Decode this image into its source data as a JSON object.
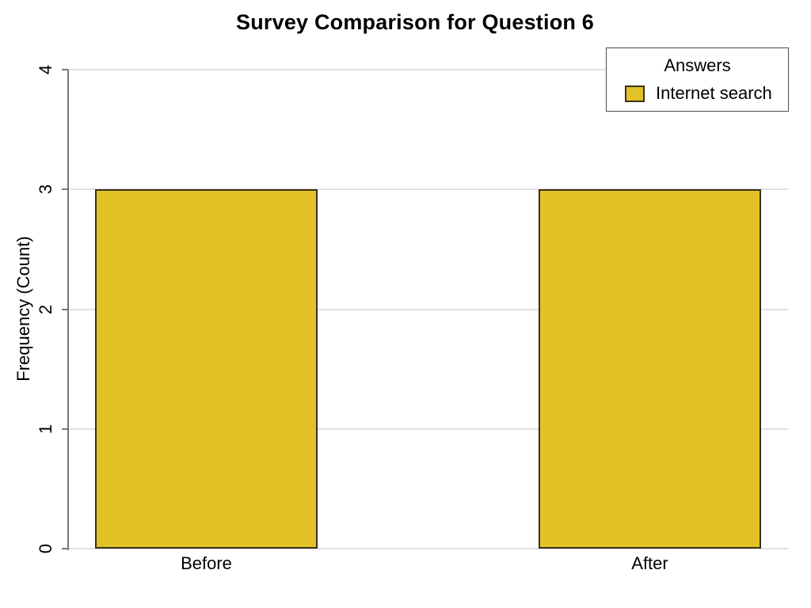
{
  "chart_data": {
    "type": "bar",
    "title": "Survey Comparison for Question 6",
    "categories": [
      "Before",
      "After"
    ],
    "series": [
      {
        "name": "Internet search",
        "values": [
          3,
          3
        ]
      }
    ],
    "xlabel": "",
    "ylabel": "Frequency (Count)",
    "ylim": [
      0,
      4
    ],
    "yticks": [
      0,
      1,
      2,
      3,
      4
    ],
    "grid": true,
    "legend": {
      "title": "Answers",
      "position": "top-right"
    },
    "colors": {
      "bar_fill": "#e2c227",
      "bar_border": "#38321a",
      "gridline": "#e0e0e0",
      "axis": "#777777",
      "text": "#000000",
      "legend_border": "#4d4d4d"
    }
  }
}
